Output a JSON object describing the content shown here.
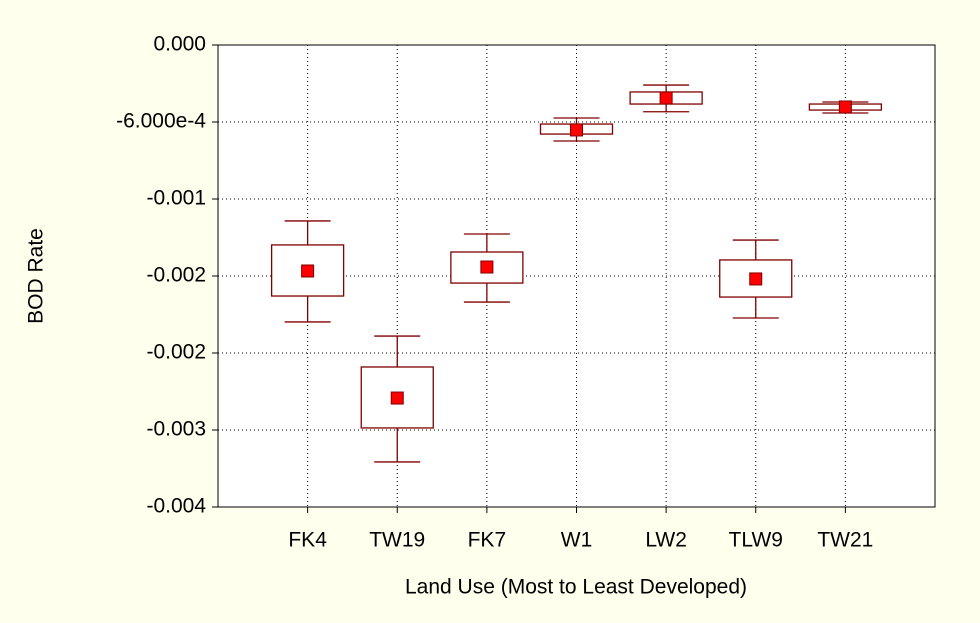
{
  "chart_data": {
    "type": "box",
    "x_label": "Land Use (Most to Least Developed)",
    "y_label": "BOD Rate",
    "categories": [
      "FK4",
      "TW19",
      "FK7",
      "W1",
      "LW2",
      "TLW9",
      "TW21"
    ],
    "means": [
      -0.001761,
      -0.002751,
      -0.00173,
      -0.000662,
      -0.000413,
      -0.001823,
      -0.000483
    ],
    "box_upper": [
      -0.001558,
      -0.002509,
      -0.001613,
      -0.000616,
      -0.000366,
      -0.001675,
      -0.00046
    ],
    "box_lower": [
      -0.001956,
      -0.002984,
      -0.001855,
      -0.000694,
      -0.00046,
      -0.001964,
      -0.000507
    ],
    "whisker_upper": [
      -0.001371,
      -0.002268,
      -0.001473,
      -0.000569,
      -0.000312,
      -0.00152,
      -0.000444
    ],
    "whisker_lower": [
      -0.002158,
      -0.003249,
      -0.002003,
      -0.000748,
      -0.00052,
      -0.002127,
      -0.00053
    ],
    "box_color": "#800000",
    "mean_color": "#ff0000",
    "ylim": [
      -0.0036,
      0
    ],
    "yticks": [
      {
        "value": 0,
        "label": "0.000"
      },
      {
        "value": -0.0006,
        "label": "-6.000e-4"
      },
      {
        "value": -0.0012,
        "label": "-0.001"
      },
      {
        "value": -0.0018,
        "label": "-0.002"
      },
      {
        "value": -0.0024,
        "label": "-0.002"
      },
      {
        "value": -0.003,
        "label": "-0.003"
      },
      {
        "value": -0.0036,
        "label": "-0.004"
      }
    ],
    "grid": true
  }
}
